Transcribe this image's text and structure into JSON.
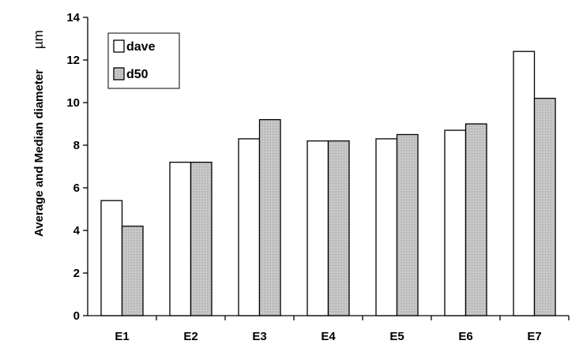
{
  "chart_data": {
    "type": "bar",
    "categories": [
      "E1",
      "E2",
      "E3",
      "E4",
      "E5",
      "E6",
      "E7"
    ],
    "series": [
      {
        "name": "dave",
        "values": [
          5.4,
          7.2,
          8.3,
          8.2,
          8.3,
          8.7,
          12.4
        ],
        "fill": "#ffffff"
      },
      {
        "name": "d50",
        "values": [
          4.2,
          7.2,
          9.2,
          8.2,
          8.5,
          9.0,
          10.2
        ],
        "fill": "#c8c8c8"
      }
    ],
    "ylabel": "Average and Median diameter",
    "yunit": "µm",
    "ylim": [
      0,
      14
    ],
    "yticks": [
      0,
      2,
      4,
      6,
      8,
      10,
      12,
      14
    ],
    "grid": false,
    "legend": "top-left",
    "colors": {
      "bar_stroke": "#000000",
      "axis": "#000000"
    }
  }
}
